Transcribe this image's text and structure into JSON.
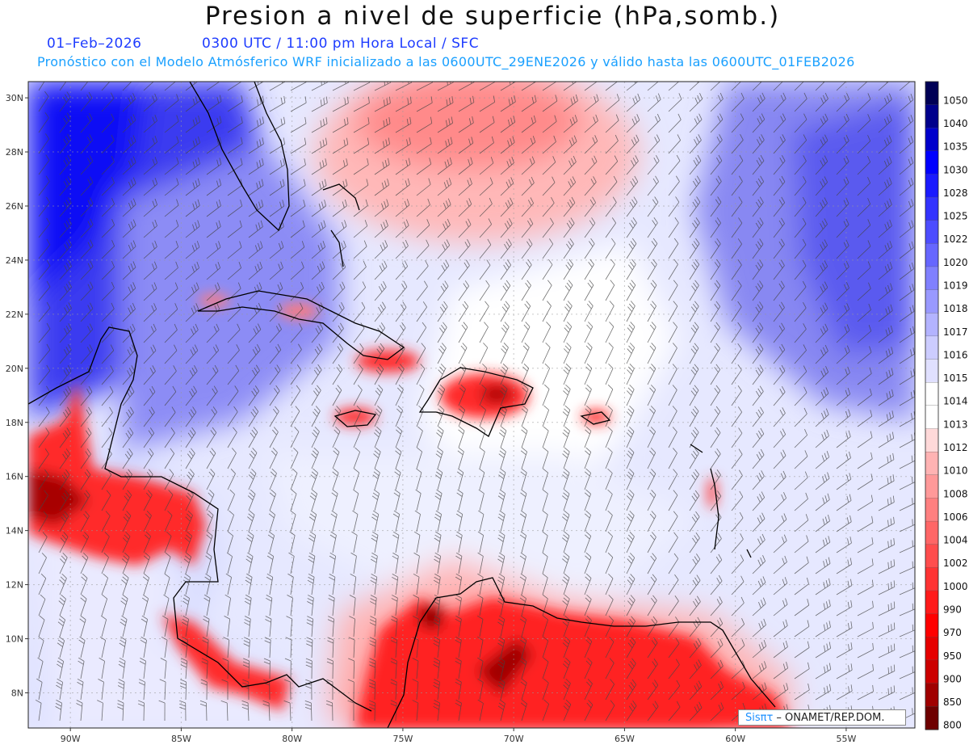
{
  "header": {
    "title": "Presion a nivel de superficie (hPa,somb.)",
    "date": "01–Feb–2026",
    "time": "0300 UTC / 11:00 pm Hora Local / SFC",
    "subtitle": "Pronóstico con el Modelo Atmósferico WRF inicializado a las 0600UTC_29ENE2026 y válido hasta las  0600UTC_01FEB2026"
  },
  "map": {
    "lat_labels": [
      "30N",
      "28N",
      "26N",
      "24N",
      "22N",
      "20N",
      "18N",
      "16N",
      "14N",
      "12N",
      "10N",
      "8N"
    ],
    "lon_labels": [
      "90W",
      "85W",
      "80W",
      "75W",
      "70W",
      "65W",
      "60W",
      "55W"
    ],
    "field": "sea level pressure (hPa) with wind barbs"
  },
  "colorbar": {
    "levels": [
      "1050",
      "1040",
      "1035",
      "1030",
      "1028",
      "1025",
      "1022",
      "1020",
      "1019",
      "1018",
      "1017",
      "1016",
      "1015",
      "1014",
      "1013",
      "1012",
      "1010",
      "1008",
      "1006",
      "1004",
      "1002",
      "1000",
      "990",
      "970",
      "950",
      "900",
      "850",
      "800"
    ],
    "colors": [
      "#000055",
      "#00008c",
      "#0000cc",
      "#0000ff",
      "#1a1aff",
      "#3333ff",
      "#4d4dff",
      "#6666ff",
      "#8080ff",
      "#9999ff",
      "#b3b3ff",
      "#ccccff",
      "#e0e0ff",
      "#ffffff",
      "#ffffff",
      "#ffd9d9",
      "#ffb3b3",
      "#ff9999",
      "#ff8080",
      "#ff6666",
      "#ff4d4d",
      "#ff3333",
      "#ff1a1a",
      "#ff0000",
      "#e60000",
      "#cc0000",
      "#a00000",
      "#6e0000"
    ]
  },
  "credit": {
    "logo": "Sisπτ",
    "text": " – ONAMET/REP.DOM."
  }
}
